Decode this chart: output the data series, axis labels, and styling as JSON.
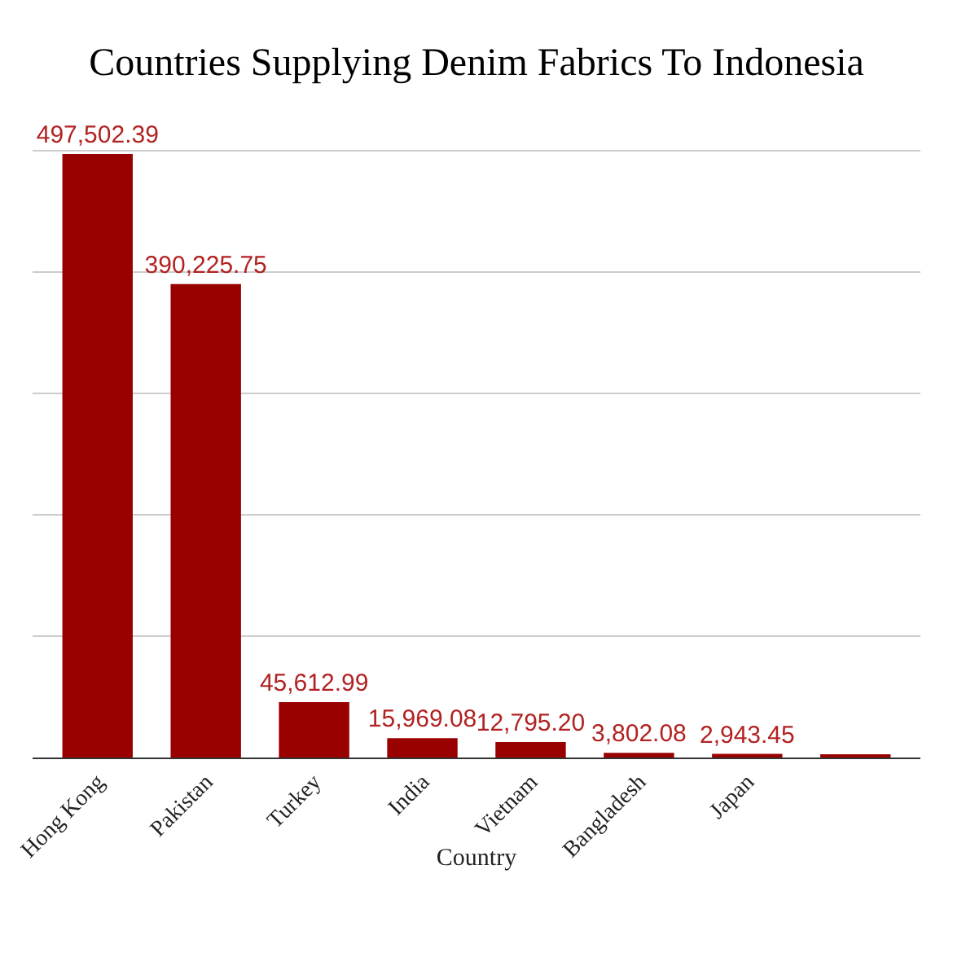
{
  "chart_data": {
    "type": "bar",
    "title": "Countries Supplying Denim Fabrics To Indonesia",
    "xlabel": "Country",
    "categories": [
      "Hong Kong",
      "Pakistan",
      "Turkey",
      "India",
      "Vietnam",
      "Bangladesh",
      "Japan",
      null
    ],
    "values": [
      497502.39,
      390225.75,
      45612.99,
      15969.08,
      12795.2,
      3802.08,
      2943.45,
      2500
    ],
    "value_labels": [
      "497,502.39",
      "390,225.75",
      "45,612.99",
      "15,969.08",
      "12,795.20",
      "3,802.08",
      "2,943.45",
      null
    ],
    "color": "#990000",
    "grid": "y",
    "tick_labels": "x",
    "legend": false
  }
}
